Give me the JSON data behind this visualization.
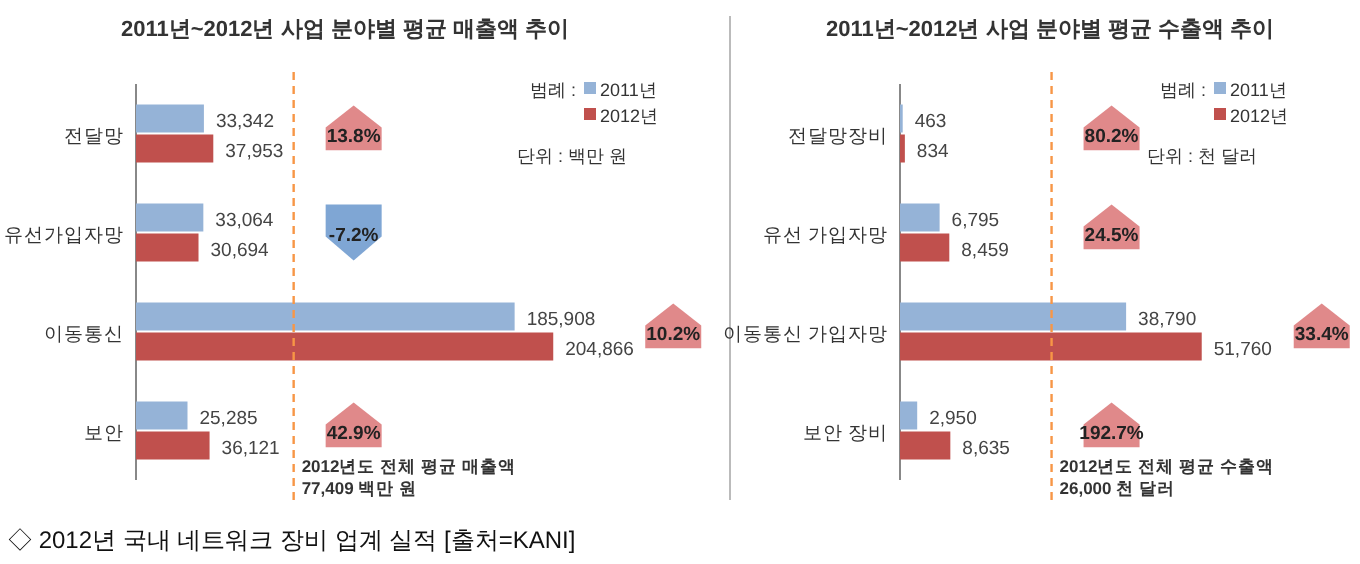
{
  "chart_data": [
    {
      "type": "bar",
      "orientation": "horizontal",
      "title": "2011년~2012년 사업 분야별 평균 매출액 추이",
      "categories": [
        "전달망",
        "유선가입자망",
        "이동통신",
        "보안"
      ],
      "series": [
        {
          "name": "2011년",
          "color": "#95b3d7",
          "values": [
            33342,
            33064,
            185908,
            25285
          ],
          "value_labels": [
            "33,342",
            "33,064",
            "185,908",
            "25,285"
          ]
        },
        {
          "name": "2012년",
          "color": "#c0504d",
          "values": [
            37953,
            30694,
            204866,
            36121
          ],
          "value_labels": [
            "37,953",
            "30,694",
            "204,866",
            "36,121"
          ]
        }
      ],
      "legend": "top right",
      "legend_title": "범례 :",
      "ref_lines": [
        {
          "axis": "x",
          "value": 77409,
          "label": "2012년도 전체 평균 매출액\n77,409 백만 원",
          "color": "#f79646",
          "line_style": "dashed"
        }
      ],
      "annotations": [
        "13.8%",
        "-7.2%",
        "10.2%",
        "42.9%",
        "단위 : 백만 원",
        "◇ 2012년 국내 네트워크 장비 업계 실적 [출처=KANI]"
      ]
    },
    {
      "type": "bar",
      "orientation": "horizontal",
      "title": "2011년~2012년 사업 분야별 평균 수출액 추이",
      "categories": [
        "전달망장비",
        "유선 가입자망",
        "이동통신 가입자망",
        "보안 장비"
      ],
      "series": [
        {
          "name": "2011년",
          "color": "#95b3d7",
          "values": [
            463,
            6795,
            38790,
            2950
          ],
          "value_labels": [
            "463",
            "6,795",
            "38,790",
            "2,950"
          ]
        },
        {
          "name": "2012년",
          "color": "#c0504d",
          "values": [
            834,
            8459,
            51760,
            8635
          ],
          "value_labels": [
            "834",
            "8,459",
            "51,760",
            "8,635"
          ]
        }
      ],
      "legend": "top right",
      "legend_title": "범례 :",
      "ref_lines": [
        {
          "axis": "x",
          "value": 26000,
          "label": "2012년도 전체 평균 수출액\n26,000 천 달러",
          "color": "#f79646",
          "line_style": "dashed"
        }
      ],
      "annotations": [
        "80.2%",
        "24.5%",
        "33.4%",
        "192.7%",
        "단위 : 천 달러"
      ]
    }
  ]
}
